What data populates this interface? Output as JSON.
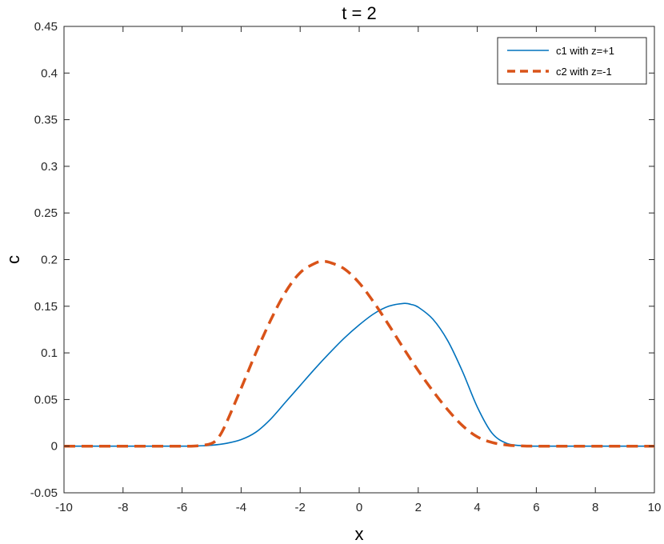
{
  "chart_data": {
    "type": "line",
    "title": "t = 2",
    "xlabel": "x",
    "ylabel": "c",
    "xlim": [
      -10,
      10
    ],
    "ylim": [
      -0.05,
      0.45
    ],
    "xticks": [
      -10,
      -8,
      -6,
      -4,
      -2,
      0,
      2,
      4,
      6,
      8,
      10
    ],
    "xtick_labels": [
      "-10",
      "-8",
      "-6",
      "-4",
      "-2",
      "0",
      "2",
      "4",
      "6",
      "8",
      "10"
    ],
    "yticks": [
      -0.05,
      0,
      0.05,
      0.1,
      0.15,
      0.2,
      0.25,
      0.3,
      0.35,
      0.4,
      0.45
    ],
    "ytick_labels": [
      "-0.05",
      "0",
      "0.05",
      "0.1",
      "0.15",
      "0.2",
      "0.25",
      "0.3",
      "0.35",
      "0.4",
      "0.45"
    ],
    "grid": false,
    "legend_position": "top-right",
    "series": [
      {
        "name": "c1 with z=+1",
        "color": "#0072BD",
        "style": "solid",
        "x": [
          -10,
          -9,
          -8,
          -7,
          -6,
          -5.5,
          -5,
          -4.5,
          -4,
          -3.5,
          -3,
          -2.5,
          -2,
          -1.5,
          -1,
          -0.5,
          0,
          0.5,
          1,
          1.5,
          1.75,
          2,
          2.5,
          3,
          3.5,
          4,
          4.5,
          5,
          5.5,
          6,
          7,
          8,
          9,
          10
        ],
        "y": [
          0,
          0,
          0,
          0,
          0,
          0.0002,
          0.001,
          0.003,
          0.007,
          0.015,
          0.029,
          0.047,
          0.065,
          0.083,
          0.1,
          0.116,
          0.13,
          0.142,
          0.15,
          0.153,
          0.152,
          0.149,
          0.136,
          0.113,
          0.08,
          0.042,
          0.014,
          0.003,
          0.0005,
          0,
          0,
          0,
          0,
          0
        ]
      },
      {
        "name": "c2 with z=-1",
        "color": "#D95319",
        "style": "dashed",
        "x": [
          -10,
          -9,
          -8,
          -7,
          -6,
          -5.5,
          -5,
          -4.75,
          -4.5,
          -4,
          -3.5,
          -3,
          -2.5,
          -2,
          -1.5,
          -1.25,
          -1,
          -0.5,
          0,
          0.5,
          1,
          1.5,
          2,
          2.5,
          3,
          3.5,
          4,
          4.5,
          5,
          5.5,
          6,
          7,
          8,
          9,
          10
        ],
        "y": [
          0,
          0,
          0,
          0,
          0,
          0.0003,
          0.003,
          0.01,
          0.025,
          0.062,
          0.1,
          0.135,
          0.165,
          0.186,
          0.196,
          0.198,
          0.197,
          0.19,
          0.175,
          0.154,
          0.13,
          0.105,
          0.081,
          0.059,
          0.039,
          0.022,
          0.01,
          0.004,
          0.0012,
          0.0003,
          0,
          0,
          0,
          0,
          0
        ]
      }
    ]
  }
}
